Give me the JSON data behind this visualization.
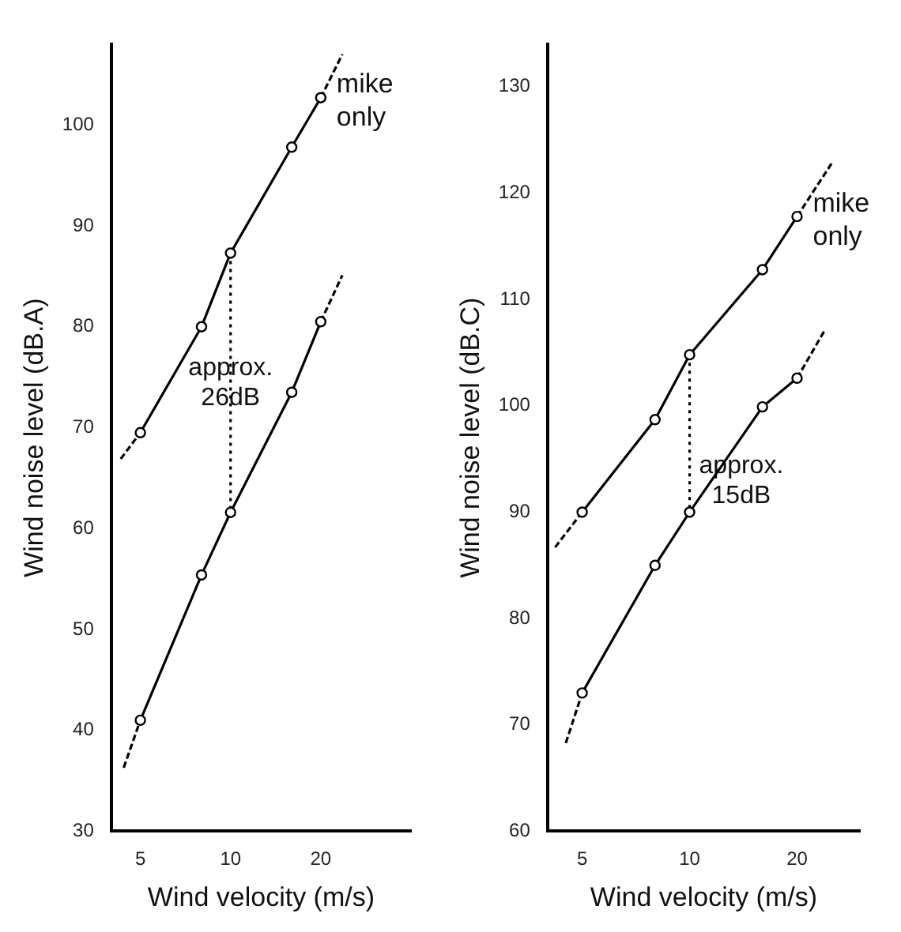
{
  "chart_data": [
    {
      "type": "line",
      "xlabel": "Wind velocity (m/s)",
      "ylabel": "Wind noise level (dB.A)",
      "log": "x",
      "xlim": [
        4,
        40
      ],
      "xticks": [
        5,
        10,
        20
      ],
      "ylim": [
        30,
        108
      ],
      "yticks": [
        30,
        40,
        50,
        60,
        70,
        80,
        90,
        100
      ],
      "grid": false,
      "marker": "circle",
      "annotations": [
        "approx. 26dB"
      ],
      "series": [
        {
          "name": "mike only",
          "color": "#000000",
          "x": [
            5,
            8,
            10,
            16,
            20
          ],
          "values": [
            69.5,
            80,
            87.3,
            97.8,
            102.7
          ]
        },
        {
          "color": "#000000",
          "x": [
            5,
            8,
            10,
            16,
            20
          ],
          "values": [
            41,
            55.4,
            61.6,
            73.5,
            80.5
          ]
        },
        {
          "color": "#000000",
          "line_style": "dashed",
          "marker": "none",
          "x": [
            4.3,
            5
          ],
          "values": [
            66.9,
            69.5
          ]
        },
        {
          "color": "#000000",
          "line_style": "dashed",
          "marker": "none",
          "x": [
            20,
            23.6
          ],
          "values": [
            102.7,
            107
          ]
        },
        {
          "color": "#000000",
          "line_style": "dashed",
          "marker": "none",
          "x": [
            4.4,
            5
          ],
          "values": [
            36.3,
            41
          ]
        },
        {
          "color": "#000000",
          "line_style": "dashed",
          "marker": "none",
          "x": [
            20,
            23.6
          ],
          "values": [
            80.5,
            85.1
          ]
        },
        {
          "color": "#000000",
          "line_style": "dotted",
          "marker": "none",
          "x": [
            10,
            10
          ],
          "values": [
            87.3,
            61.6
          ]
        }
      ]
    },
    {
      "type": "line",
      "xlabel": "Wind velocity (m/s)",
      "ylabel": "Wind noise level (dB.C)",
      "log": "x",
      "xlim": [
        4,
        30
      ],
      "xticks": [
        5,
        10,
        20
      ],
      "ylim": [
        60,
        134
      ],
      "yticks": [
        60,
        70,
        80,
        90,
        100,
        110,
        120,
        130
      ],
      "grid": false,
      "marker": "circle",
      "annotations": [
        "approx. 15dB"
      ],
      "series": [
        {
          "name": "mike only",
          "color": "#000000",
          "x": [
            5,
            8,
            10,
            16,
            20
          ],
          "values": [
            90,
            98.7,
            104.8,
            112.8,
            117.8
          ]
        },
        {
          "color": "#000000",
          "x": [
            5,
            8,
            10,
            16,
            20
          ],
          "values": [
            73,
            85,
            90,
            99.9,
            102.6
          ]
        },
        {
          "color": "#000000",
          "line_style": "dashed",
          "marker": "none",
          "x": [
            4.2,
            5
          ],
          "values": [
            86.7,
            90
          ]
        },
        {
          "color": "#000000",
          "line_style": "dashed",
          "marker": "none",
          "x": [
            20,
            25
          ],
          "values": [
            117.8,
            122.8
          ]
        },
        {
          "color": "#000000",
          "line_style": "dashed",
          "marker": "none",
          "x": [
            4.5,
            5
          ],
          "values": [
            68.3,
            73
          ]
        },
        {
          "color": "#000000",
          "line_style": "dashed",
          "marker": "none",
          "x": [
            20,
            24
          ],
          "values": [
            102.6,
            107.2
          ]
        },
        {
          "color": "#000000",
          "line_style": "dotted",
          "marker": "none",
          "x": [
            10,
            10
          ],
          "values": [
            104.8,
            90
          ]
        }
      ]
    }
  ]
}
